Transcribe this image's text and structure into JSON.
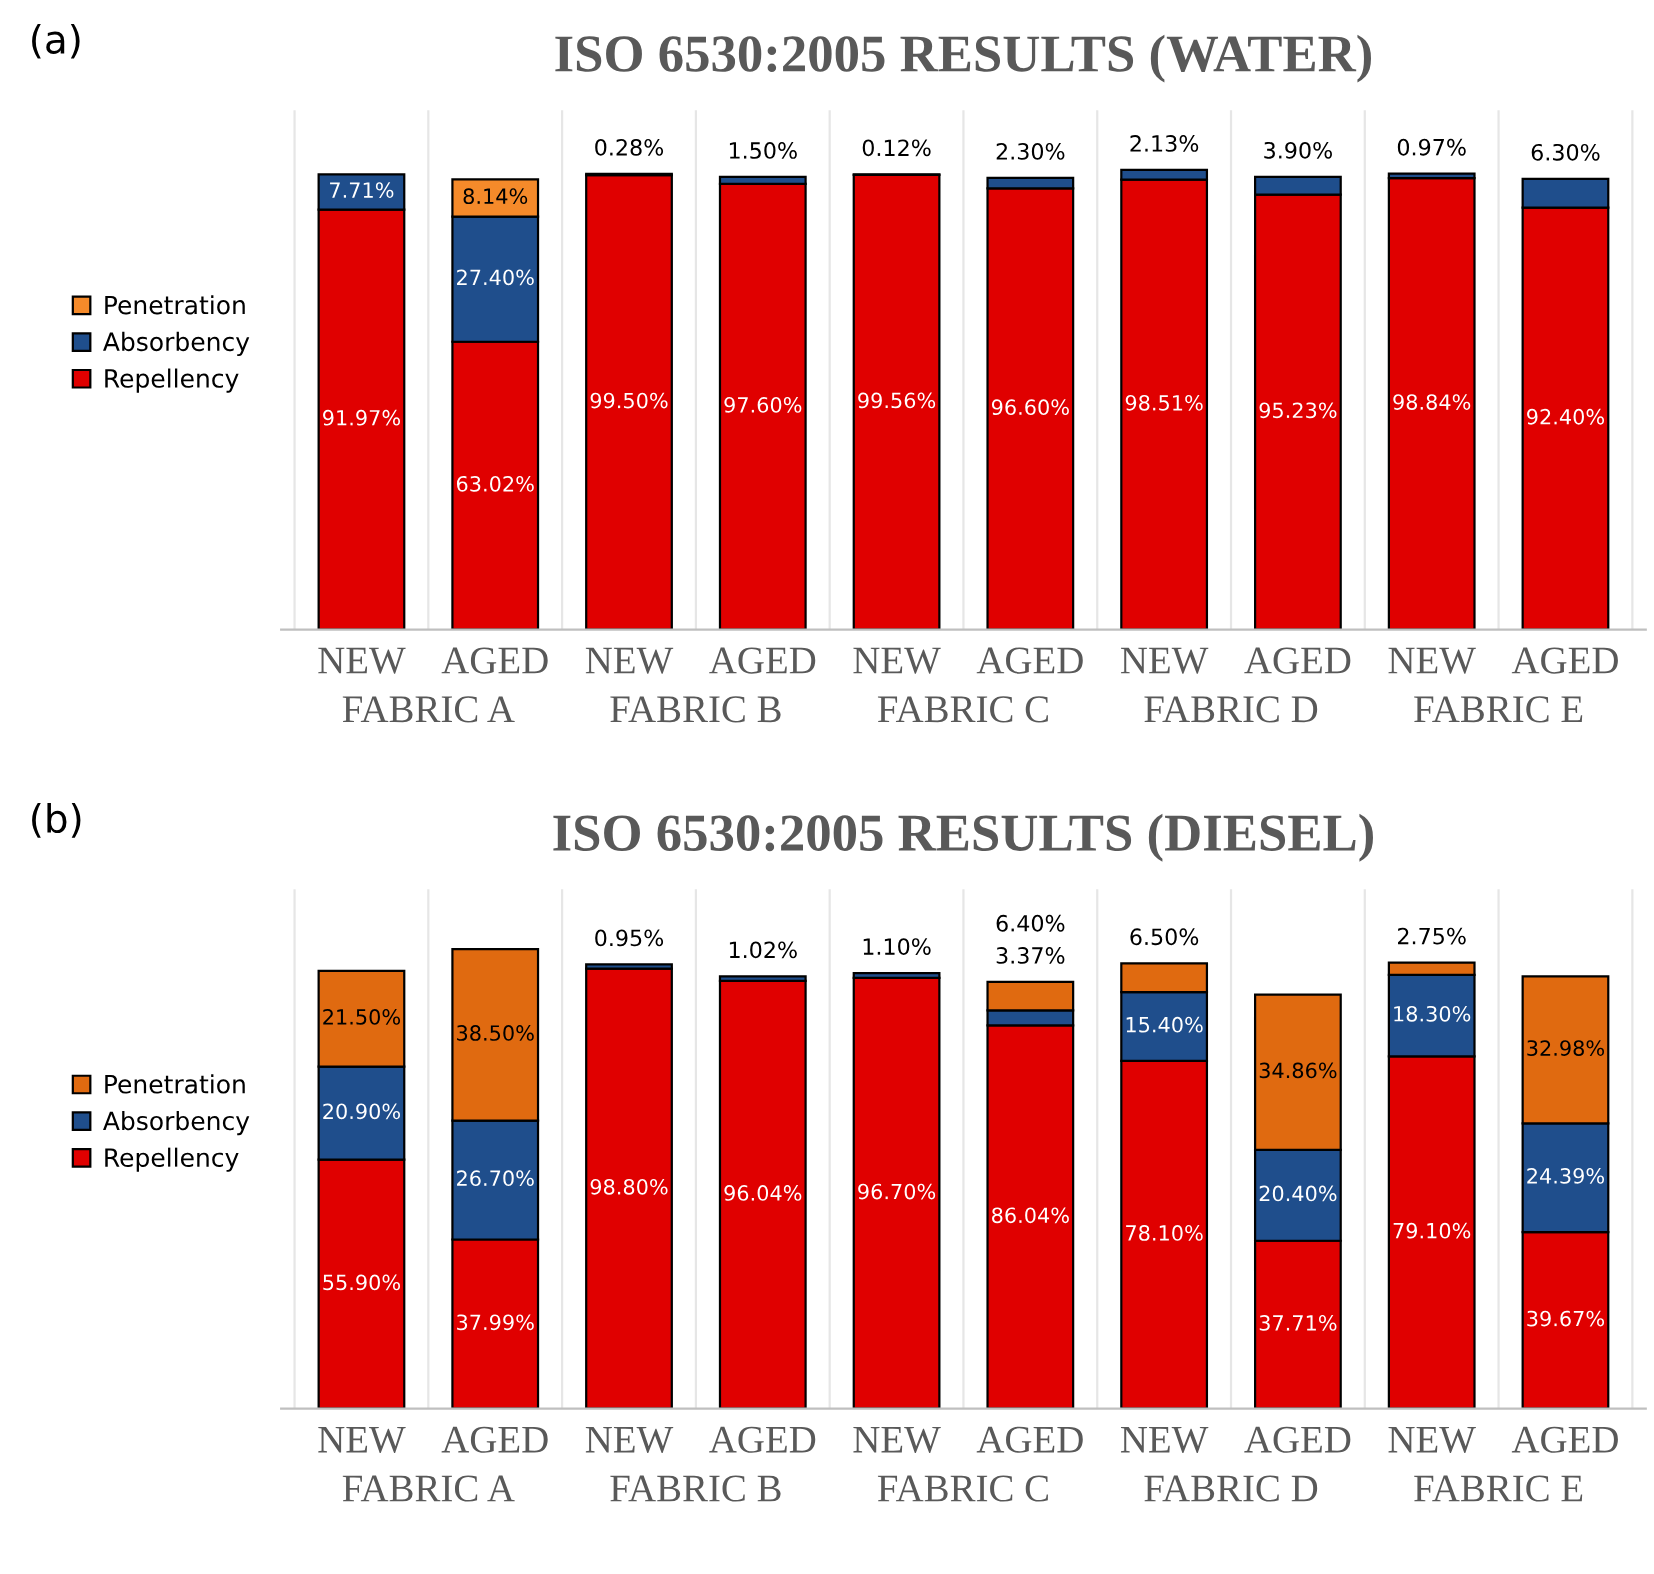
{
  "chart_data": [
    {
      "type": "bar",
      "stacked": true,
      "title": "ISO 6530:2005 RESULTS (WATER)",
      "legend": "left",
      "categories": [
        "NEW",
        "AGED",
        "NEW",
        "AGED",
        "NEW",
        "AGED",
        "NEW",
        "AGED",
        "NEW",
        "AGED"
      ],
      "annotations": [
        "(a)",
        "FABRIC A",
        "FABRIC B",
        "FABRIC C",
        "FABRIC D",
        "FABRIC E"
      ],
      "series": [
        {
          "name": "Repellency",
          "color": "#e00000",
          "values": [
            91.97,
            63.02,
            99.5,
            97.6,
            99.56,
            96.6,
            98.51,
            95.23,
            98.84,
            92.4
          ],
          "value_labels": [
            "91.97%",
            "63.02%",
            "99.50%",
            "97.60%",
            "99.56%",
            "96.60%",
            "98.51%",
            "95.23%",
            "98.84%",
            "92.40%"
          ]
        },
        {
          "name": "Absorbency",
          "color": "#1f4e8c",
          "values": [
            7.71,
            27.4,
            0.28,
            1.5,
            0.12,
            2.3,
            2.13,
            3.9,
            0.97,
            6.3
          ],
          "value_labels": [
            "7.71%",
            "27.40%",
            "0.28%",
            "1.50%",
            "0.12%",
            "2.30%",
            "2.13%",
            "3.90%",
            "0.97%",
            "6.30%"
          ]
        },
        {
          "name": "Penetration",
          "color": "#f58a2a",
          "values": [
            null,
            8.14,
            null,
            null,
            null,
            null,
            null,
            null,
            null,
            null
          ],
          "value_labels": [
            null,
            "8.14%",
            null,
            null,
            null,
            null,
            null,
            null,
            null,
            null
          ]
        }
      ]
    },
    {
      "type": "bar",
      "stacked": true,
      "title": "ISO 6530:2005 RESULTS (DIESEL)",
      "legend": "left",
      "categories": [
        "NEW",
        "AGED",
        "NEW",
        "AGED",
        "NEW",
        "AGED",
        "NEW",
        "AGED",
        "NEW",
        "AGED"
      ],
      "annotations": [
        "(b)",
        "FABRIC A",
        "FABRIC B",
        "FABRIC C",
        "FABRIC D",
        "FABRIC E"
      ],
      "series": [
        {
          "name": "Repellency",
          "color": "#e00000",
          "values": [
            55.9,
            37.99,
            98.8,
            96.04,
            96.7,
            86.04,
            78.1,
            37.71,
            79.1,
            39.67
          ],
          "value_labels": [
            "55.90%",
            "37.99%",
            "98.80%",
            "96.04%",
            "96.70%",
            "86.04%",
            "78.10%",
            "37.71%",
            "79.10%",
            "39.67%"
          ]
        },
        {
          "name": "Absorbency",
          "color": "#1f4e8c",
          "values": [
            20.9,
            26.7,
            0.95,
            1.02,
            1.1,
            3.37,
            15.4,
            20.4,
            18.3,
            24.39
          ],
          "value_labels": [
            "20.90%",
            "26.70%",
            "0.95%",
            "1.02%",
            "1.10%",
            "3.37%",
            "15.40%",
            "20.40%",
            "18.30%",
            "24.39%"
          ]
        },
        {
          "name": "Penetration",
          "color": "#e06a10",
          "values": [
            21.5,
            38.5,
            null,
            null,
            null,
            6.4,
            6.5,
            34.86,
            2.75,
            32.98
          ],
          "value_labels": [
            "21.50%",
            "38.50%",
            null,
            null,
            null,
            "6.40%",
            "6.50%",
            "34.86%",
            "2.75%",
            "32.98%"
          ]
        }
      ]
    }
  ]
}
